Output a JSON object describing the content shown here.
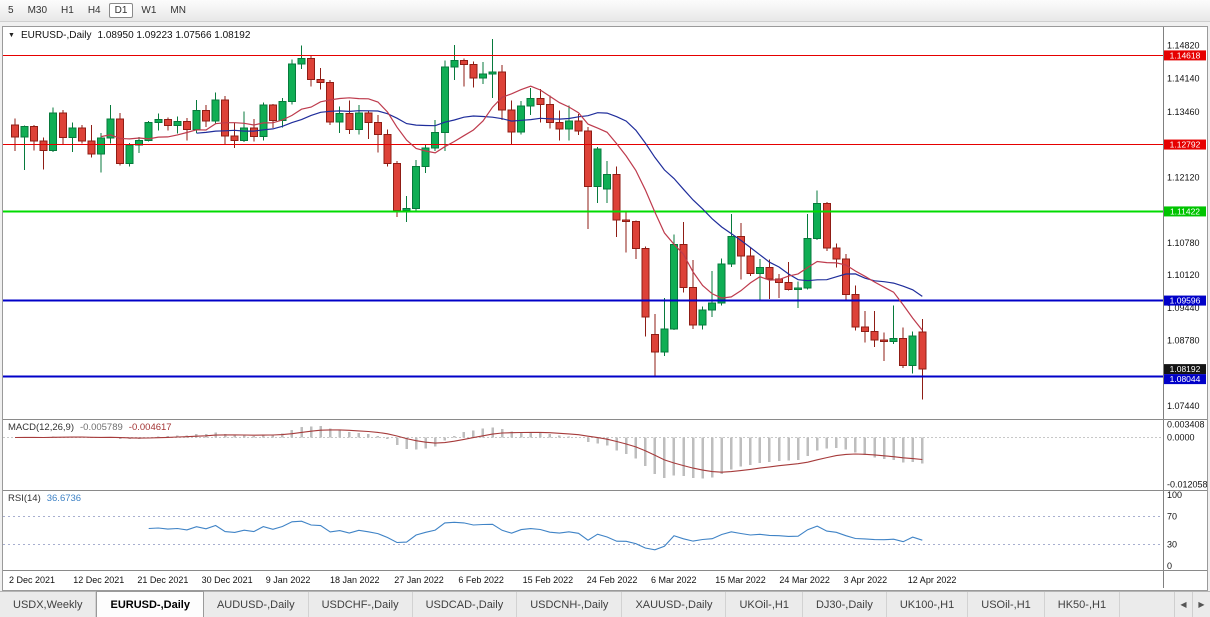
{
  "toolbar": {
    "timeframes": [
      {
        "label": "5",
        "active": false
      },
      {
        "label": "M30",
        "active": false
      },
      {
        "label": "H1",
        "active": false
      },
      {
        "label": "H4",
        "active": false
      },
      {
        "label": "D1",
        "active": true
      },
      {
        "label": "W1",
        "active": false
      },
      {
        "label": "MN",
        "active": false
      }
    ]
  },
  "chart": {
    "dropdown_icon": "▼",
    "symbol": "EURUSD-,Daily",
    "ohlc_text": "1.08950 1.09223 1.07566 1.08192",
    "price_axis": {
      "ticks": [
        "1.14820",
        "1.14140",
        "1.13460",
        "1.12120",
        "1.10780",
        "1.10120",
        "1.09440",
        "1.08780",
        "1.07440"
      ],
      "badges": [
        {
          "label": "1.14618",
          "color": "#E60000"
        },
        {
          "label": "1.12792",
          "color": "#E60000"
        },
        {
          "label": "1.11422",
          "color": "#00C400"
        },
        {
          "label": "1.09596",
          "color": "#0000C8"
        },
        {
          "label": "1.08192",
          "color": "#141414"
        },
        {
          "label": "1.08044",
          "color": "#0000C8"
        }
      ]
    },
    "hlines": [
      {
        "price": 1.14618,
        "color": "#E60000",
        "width": 1
      },
      {
        "price": 1.12792,
        "color": "#E60000",
        "width": 1
      },
      {
        "price": 1.11422,
        "color": "#00DB00",
        "width": 2
      },
      {
        "price": 1.09596,
        "color": "#0000C8",
        "width": 2
      },
      {
        "price": 1.08044,
        "color": "#0000C8",
        "width": 2
      }
    ],
    "colors": {
      "up_fill": "#0FAE54",
      "up_stroke": "#077A3C",
      "down_fill": "#DD4238",
      "down_stroke": "#8F1D15",
      "ma_fast": "#BE3B4D",
      "ma_slow": "#1F2D9B"
    }
  },
  "chart_data": {
    "type": "candlestick",
    "symbol": "EURUSD-,Daily",
    "ylim": [
      1.0717,
      1.152
    ],
    "ma_fast_period": 10,
    "ma_slow_period": 20,
    "ohlc": [
      [
        1.1319,
        1.1333,
        1.1266,
        1.1295
      ],
      [
        1.1295,
        1.1318,
        1.1227,
        1.1316
      ],
      [
        1.1316,
        1.1319,
        1.1267,
        1.1286
      ],
      [
        1.1286,
        1.1294,
        1.1228,
        1.1267
      ],
      [
        1.1267,
        1.1355,
        1.1264,
        1.1344
      ],
      [
        1.1344,
        1.135,
        1.1279,
        1.1294
      ],
      [
        1.1294,
        1.1324,
        1.1264,
        1.1313
      ],
      [
        1.1313,
        1.1319,
        1.1281,
        1.1286
      ],
      [
        1.1286,
        1.1319,
        1.1253,
        1.126
      ],
      [
        1.126,
        1.1303,
        1.1222,
        1.1293
      ],
      [
        1.1293,
        1.136,
        1.1281,
        1.1332
      ],
      [
        1.1332,
        1.1344,
        1.1236,
        1.124
      ],
      [
        1.124,
        1.1282,
        1.1234,
        1.1278
      ],
      [
        1.1278,
        1.1295,
        1.1262,
        1.1287
      ],
      [
        1.1287,
        1.1327,
        1.1285,
        1.1324
      ],
      [
        1.1324,
        1.1343,
        1.1308,
        1.1331
      ],
      [
        1.1331,
        1.1335,
        1.1308,
        1.1318
      ],
      [
        1.1318,
        1.1337,
        1.1302,
        1.1326
      ],
      [
        1.1326,
        1.1334,
        1.1288,
        1.131
      ],
      [
        1.131,
        1.137,
        1.1303,
        1.1349
      ],
      [
        1.1349,
        1.136,
        1.1315,
        1.1327
      ],
      [
        1.1327,
        1.1386,
        1.1321,
        1.137
      ],
      [
        1.137,
        1.1379,
        1.1279,
        1.1297
      ],
      [
        1.1297,
        1.1323,
        1.1272,
        1.1287
      ],
      [
        1.1287,
        1.1347,
        1.1284,
        1.1313
      ],
      [
        1.1313,
        1.1332,
        1.1285,
        1.1296
      ],
      [
        1.1296,
        1.1365,
        1.1288,
        1.136
      ],
      [
        1.136,
        1.1362,
        1.1313,
        1.1328
      ],
      [
        1.1328,
        1.1375,
        1.1314,
        1.1367
      ],
      [
        1.1367,
        1.1453,
        1.1361,
        1.1444
      ],
      [
        1.1444,
        1.1482,
        1.1434,
        1.1455
      ],
      [
        1.1455,
        1.1461,
        1.1398,
        1.1412
      ],
      [
        1.1412,
        1.1436,
        1.1392,
        1.1406
      ],
      [
        1.1406,
        1.1411,
        1.1319,
        1.1325
      ],
      [
        1.1325,
        1.1357,
        1.1303,
        1.1343
      ],
      [
        1.1343,
        1.1369,
        1.1301,
        1.131
      ],
      [
        1.131,
        1.136,
        1.13,
        1.1344
      ],
      [
        1.1344,
        1.1349,
        1.1291,
        1.1324
      ],
      [
        1.1324,
        1.134,
        1.1263,
        1.13
      ],
      [
        1.13,
        1.131,
        1.1234,
        1.124
      ],
      [
        1.124,
        1.1245,
        1.1131,
        1.1144
      ],
      [
        1.1144,
        1.1174,
        1.1121,
        1.1148
      ],
      [
        1.1148,
        1.1248,
        1.114,
        1.1234
      ],
      [
        1.1234,
        1.1279,
        1.1221,
        1.1272
      ],
      [
        1.1272,
        1.133,
        1.1266,
        1.1304
      ],
      [
        1.1304,
        1.1451,
        1.1266,
        1.1438
      ],
      [
        1.1438,
        1.1483,
        1.1411,
        1.1451
      ],
      [
        1.1451,
        1.1455,
        1.1398,
        1.1443
      ],
      [
        1.1443,
        1.1449,
        1.1396,
        1.1416
      ],
      [
        1.1416,
        1.1448,
        1.1403,
        1.1424
      ],
      [
        1.1424,
        1.1495,
        1.1375,
        1.1428
      ],
      [
        1.1428,
        1.1442,
        1.133,
        1.135
      ],
      [
        1.135,
        1.1369,
        1.1278,
        1.1305
      ],
      [
        1.1305,
        1.1368,
        1.13,
        1.1358
      ],
      [
        1.1358,
        1.1395,
        1.134,
        1.1374
      ],
      [
        1.1374,
        1.1393,
        1.1324,
        1.1361
      ],
      [
        1.1361,
        1.138,
        1.1312,
        1.1324
      ],
      [
        1.1324,
        1.1349,
        1.1288,
        1.1311
      ],
      [
        1.1311,
        1.1359,
        1.1287,
        1.1327
      ],
      [
        1.1327,
        1.1342,
        1.1299,
        1.1307
      ],
      [
        1.1307,
        1.1315,
        1.1106,
        1.1193
      ],
      [
        1.1193,
        1.1274,
        1.1159,
        1.127
      ],
      [
        1.1188,
        1.1246,
        1.1159,
        1.1218
      ],
      [
        1.1218,
        1.1234,
        1.109,
        1.1125
      ],
      [
        1.1125,
        1.1141,
        1.1058,
        1.1122
      ],
      [
        1.1122,
        1.1124,
        1.1045,
        1.1066
      ],
      [
        1.1066,
        1.107,
        1.0886,
        1.0926
      ],
      [
        1.089,
        1.0932,
        1.0806,
        1.0854
      ],
      [
        1.0854,
        1.0965,
        1.0846,
        1.0901
      ],
      [
        1.0901,
        1.1095,
        1.0899,
        1.1074
      ],
      [
        1.1074,
        1.1121,
        1.0976,
        1.0986
      ],
      [
        1.0986,
        1.1043,
        1.0901,
        1.091
      ],
      [
        1.091,
        1.0947,
        1.09,
        1.094
      ],
      [
        1.094,
        1.102,
        1.0926,
        1.0955
      ],
      [
        1.0955,
        1.1046,
        1.095,
        1.1035
      ],
      [
        1.1035,
        1.1137,
        1.1028,
        1.1091
      ],
      [
        1.1091,
        1.1119,
        1.1003,
        1.1051
      ],
      [
        1.1051,
        1.1069,
        1.101,
        1.1015
      ],
      [
        1.1015,
        1.1045,
        1.0962,
        1.1027
      ],
      [
        1.1027,
        1.1044,
        1.0963,
        1.1004
      ],
      [
        1.1004,
        1.1014,
        1.0965,
        1.0997
      ],
      [
        1.0997,
        1.1039,
        1.098,
        1.0982
      ],
      [
        1.0982,
        1.0999,
        1.0944,
        1.0985
      ],
      [
        1.0985,
        1.1137,
        1.0982,
        1.1087
      ],
      [
        1.1087,
        1.1185,
        1.1084,
        1.1158
      ],
      [
        1.1158,
        1.1162,
        1.1061,
        1.1067
      ],
      [
        1.1067,
        1.1077,
        1.1027,
        1.1045
      ],
      [
        1.1045,
        1.1055,
        1.096,
        1.0972
      ],
      [
        1.0972,
        1.099,
        1.0898,
        1.0905
      ],
      [
        1.0905,
        1.0938,
        1.0874,
        1.0896
      ],
      [
        1.0896,
        1.0938,
        1.0865,
        1.0879
      ],
      [
        1.0879,
        1.0894,
        1.0836,
        1.0876
      ],
      [
        1.0876,
        1.095,
        1.0871,
        1.0882
      ],
      [
        1.0882,
        1.0904,
        1.0821,
        1.0827
      ],
      [
        1.0827,
        1.0896,
        1.081,
        1.0887
      ],
      [
        1.0895,
        1.09223,
        1.07566,
        1.08192
      ]
    ]
  },
  "macd": {
    "title": "MACD(12,26,9)",
    "value_main": "-0.005789",
    "value_signal": "-0.004617",
    "fast": 12,
    "slow": 26,
    "signal_period": 9,
    "scale_labels": [
      "0.003408",
      "0.0000",
      "-0.012058"
    ],
    "range": [
      -0.0135,
      0.0045
    ],
    "hist_color": "#BEBEBE",
    "signal_color": "#A63B3B"
  },
  "rsi": {
    "title": "RSI(14)",
    "value": "36.6736",
    "period": 14,
    "scale_labels": [
      "100",
      "70",
      "30",
      "0"
    ],
    "levels": [
      70,
      30
    ],
    "line_color": "#3F83C6",
    "level_color": "#A7AECF"
  },
  "time_axis": {
    "labels": [
      "2 Dec 2021",
      "12 Dec 2021",
      "21 Dec 2021",
      "30 Dec 2021",
      "9 Jan 2022",
      "18 Jan 2022",
      "27 Jan 2022",
      "6 Feb 2022",
      "15 Feb 2022",
      "24 Feb 2022",
      "6 Mar 2022",
      "15 Mar 2022",
      "24 Mar 2022",
      "3 Apr 2022",
      "12 Apr 2022"
    ]
  },
  "tabs": {
    "scroll_left": "◀",
    "scroll_right": "▶",
    "items": [
      {
        "label": "USDX,Weekly",
        "active": false
      },
      {
        "label": "EURUSD-,Daily",
        "active": true
      },
      {
        "label": "AUDUSD-,Daily",
        "active": false
      },
      {
        "label": "USDCHF-,Daily",
        "active": false
      },
      {
        "label": "USDCAD-,Daily",
        "active": false
      },
      {
        "label": "USDCNH-,Daily",
        "active": false
      },
      {
        "label": "XAUUSD-,Daily",
        "active": false
      },
      {
        "label": "UKOil-,H1",
        "active": false
      },
      {
        "label": "DJ30-,Daily",
        "active": false
      },
      {
        "label": "UK100-,H1",
        "active": false
      },
      {
        "label": "USOil-,H1",
        "active": false
      },
      {
        "label": "HK50-,H1",
        "active": false
      }
    ]
  }
}
